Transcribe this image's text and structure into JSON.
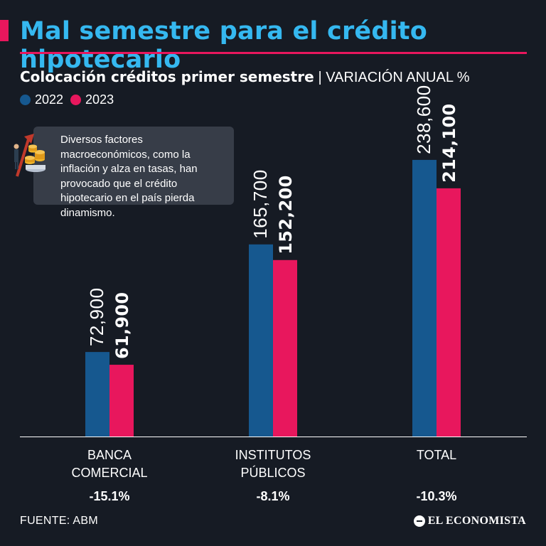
{
  "header": {
    "title": "Mal semestre para el crédito hipotecario",
    "subtitle_strong": "Colocación créditos primer semestre",
    "subtitle_thin": "| VARIACIÓN ANUAL %"
  },
  "legend": [
    {
      "label": "2022",
      "color": "#16588f"
    },
    {
      "label": "2023",
      "color": "#e8175d"
    }
  ],
  "note": {
    "text": "Diversos factores macroeconómicos, como la inflación y alza en tasas, han provocado que el crédito hipotecario en el país pierda dinamismo.",
    "icon": "money-growth-icon"
  },
  "chart_data": {
    "type": "bar",
    "title": "Colocación créditos primer semestre",
    "categories": [
      [
        "BANCA",
        "COMERCIAL"
      ],
      [
        "INSTITUTOS",
        "PÚBLICOS"
      ],
      [
        "TOTAL"
      ]
    ],
    "series": [
      {
        "name": "2022",
        "values": [
          72900,
          165700,
          238600
        ],
        "labels": [
          "72,900",
          "165,700",
          "238,600"
        ]
      },
      {
        "name": "2023",
        "values": [
          61900,
          152200,
          214100
        ],
        "labels": [
          "61,900",
          "152,200",
          "214,100"
        ]
      }
    ],
    "variation": [
      "-15.1%",
      "-8.1%",
      "-10.3%"
    ],
    "ylim": [
      0,
      260000
    ],
    "grid": false
  },
  "footer": {
    "source": "FUENTE: ABM",
    "brand": "EL ECONOMISTA"
  }
}
